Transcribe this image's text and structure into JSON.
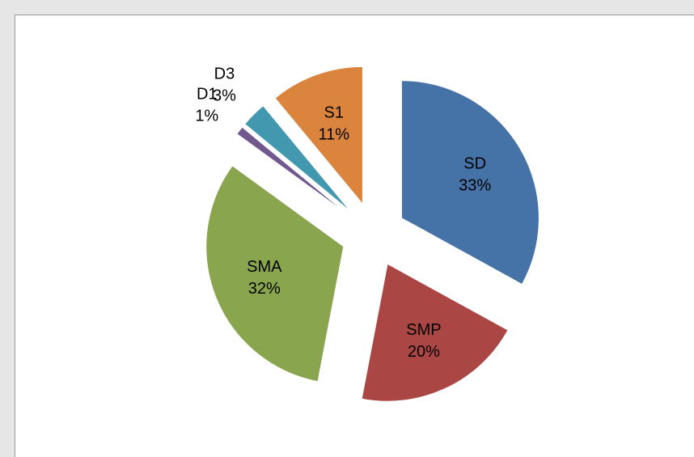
{
  "chart_data": {
    "type": "pie",
    "categories": [
      "SD",
      "SMP",
      "SMA",
      "D1",
      "D3",
      "S1"
    ],
    "values": [
      33,
      20,
      32,
      1,
      3,
      11
    ],
    "value_labels": [
      "33%",
      "20%",
      "32%",
      "1%",
      "3%",
      "11%"
    ],
    "colors": [
      "#4572a7",
      "#aa4643",
      "#89a54e",
      "#71588f",
      "#4198af",
      "#db843d"
    ]
  }
}
